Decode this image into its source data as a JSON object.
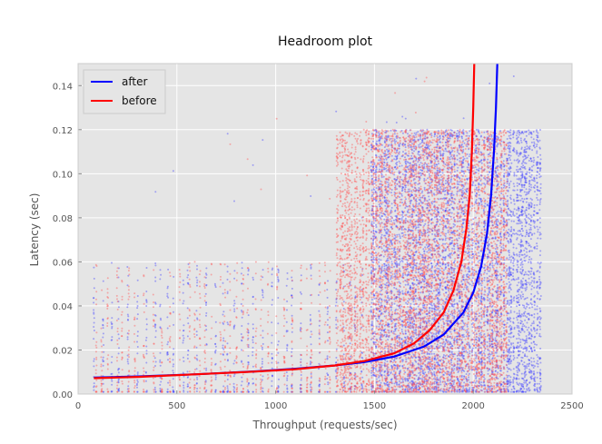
{
  "chart_data": {
    "type": "scatter",
    "title": "Headroom plot",
    "xlabel": "Throughput (requests/sec)",
    "ylabel": "Latency (sec)",
    "xlim": [
      0,
      2500
    ],
    "ylim": [
      0,
      0.15
    ],
    "xticks": [
      "0",
      "500",
      "1000",
      "1500",
      "2000",
      "2500"
    ],
    "yticks": [
      "0.00",
      "0.02",
      "0.04",
      "0.06",
      "0.08",
      "0.10",
      "0.12",
      "0.14"
    ],
    "grid": true,
    "background": "#e5e5e5",
    "legend_position": "top-left",
    "series": [
      {
        "name": "after",
        "color": "#0000ff",
        "kind": "line",
        "x": [
          80,
          300,
          600,
          900,
          1100,
          1300,
          1450,
          1600,
          1750,
          1850,
          1950,
          2000,
          2040,
          2070,
          2090,
          2105,
          2115,
          2122
        ],
        "y": [
          0.0075,
          0.008,
          0.009,
          0.0103,
          0.0115,
          0.013,
          0.0145,
          0.017,
          0.0215,
          0.027,
          0.037,
          0.046,
          0.058,
          0.073,
          0.09,
          0.11,
          0.13,
          0.15
        ]
      },
      {
        "name": "before",
        "color": "#ff0000",
        "kind": "line",
        "x": [
          80,
          300,
          600,
          900,
          1100,
          1300,
          1450,
          1600,
          1700,
          1780,
          1850,
          1900,
          1940,
          1965,
          1982,
          1993,
          2000,
          2005
        ],
        "y": [
          0.0072,
          0.0078,
          0.009,
          0.0102,
          0.0113,
          0.013,
          0.015,
          0.0185,
          0.023,
          0.029,
          0.037,
          0.047,
          0.06,
          0.075,
          0.09,
          0.11,
          0.13,
          0.15
        ]
      }
    ],
    "scatter_series": [
      {
        "name": "after",
        "color": "#4a4aff",
        "x_range": [
          80,
          2340
        ],
        "y_range": [
          0.001,
          0.15
        ],
        "dense_region": [
          1450,
          2340
        ]
      },
      {
        "name": "before",
        "color": "#ff5a5a",
        "x_range": [
          80,
          2170
        ],
        "y_range": [
          0.001,
          0.15
        ],
        "dense_region": [
          1300,
          2170
        ]
      }
    ]
  }
}
